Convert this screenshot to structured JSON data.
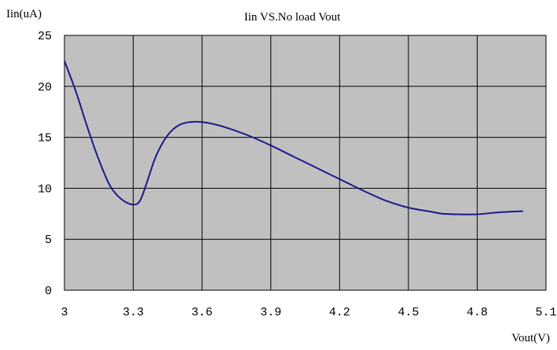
{
  "chart_data": {
    "type": "line",
    "title": "Iin VS.No load Vout",
    "xlabel": "Vout(V)",
    "ylabel": "Iin(uA)",
    "xlim": [
      3,
      5.1
    ],
    "ylim": [
      0,
      25
    ],
    "x_ticks": [
      "3",
      "3.3",
      "3.6",
      "3.9",
      "4.2",
      "4.5",
      "4.8",
      "5.1"
    ],
    "y_ticks": [
      "0",
      "5",
      "10",
      "15",
      "20",
      "25"
    ],
    "grid": true,
    "colors": {
      "plot_bg": "#c0c0c0",
      "grid": "#000000",
      "line": "#1a1a8c"
    },
    "series": [
      {
        "x": [
          3.0,
          3.05,
          3.1,
          3.15,
          3.2,
          3.25,
          3.3,
          3.33,
          3.36,
          3.4,
          3.45,
          3.5,
          3.55,
          3.6,
          3.65,
          3.7,
          3.8,
          3.9,
          4.0,
          4.1,
          4.2,
          4.3,
          4.4,
          4.5,
          4.6,
          4.65,
          4.7,
          4.8,
          4.9,
          5.0
        ],
        "y": [
          22.5,
          19.5,
          16.0,
          12.8,
          10.2,
          8.9,
          8.4,
          8.8,
          10.6,
          13.2,
          15.2,
          16.2,
          16.5,
          16.5,
          16.3,
          16.0,
          15.2,
          14.2,
          13.1,
          12.0,
          10.9,
          9.8,
          8.8,
          8.1,
          7.7,
          7.5,
          7.45,
          7.45,
          7.65,
          7.75
        ]
      }
    ]
  }
}
